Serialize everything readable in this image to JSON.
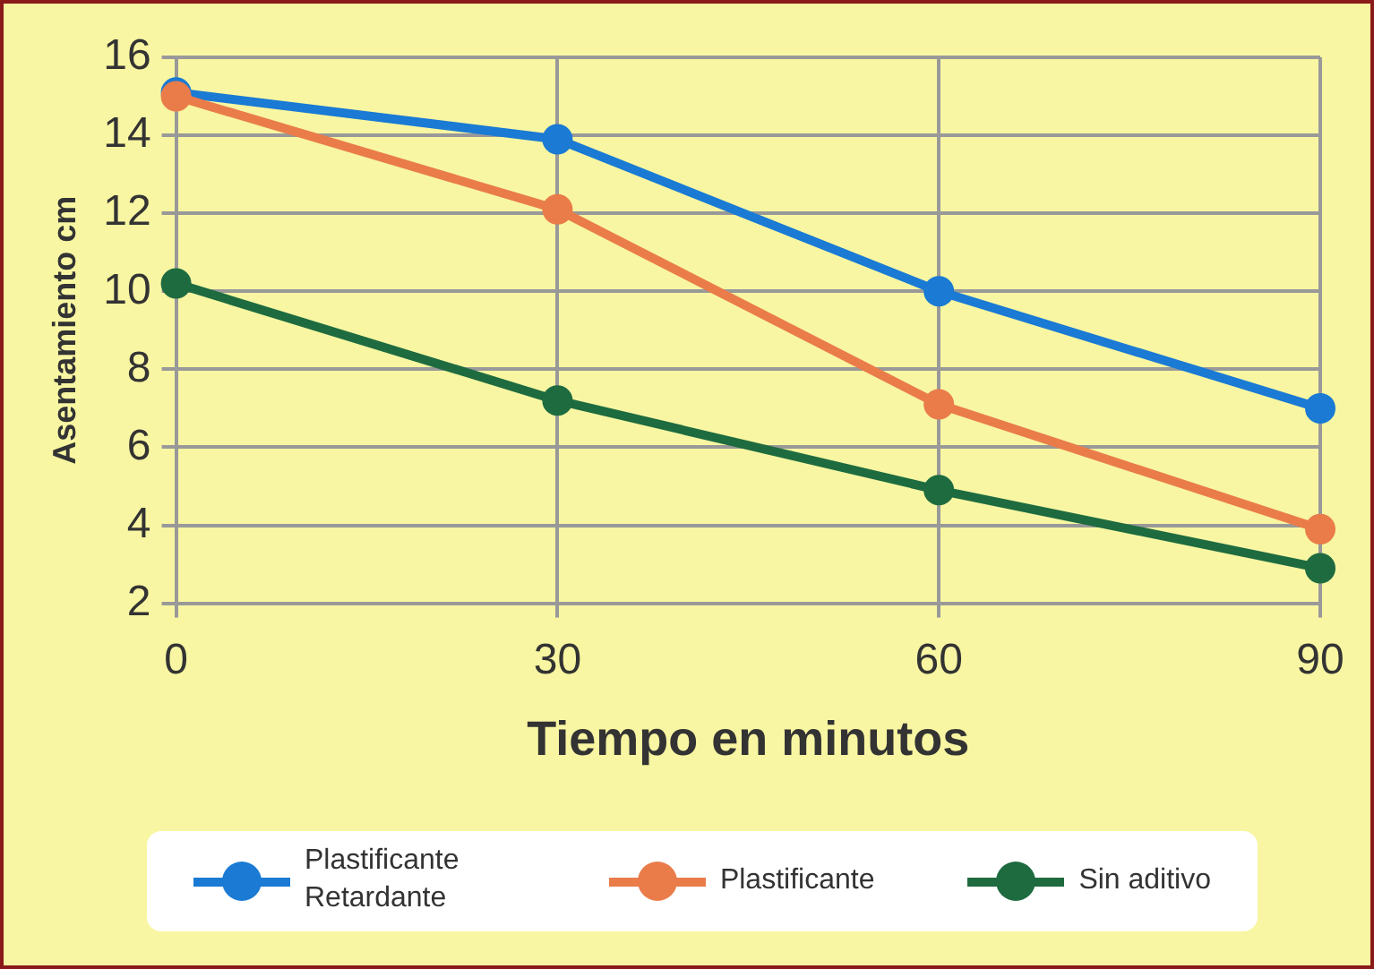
{
  "chart_data": {
    "type": "line",
    "xlabel": "Tiempo en minutos",
    "ylabel": "Asentamiento cm",
    "x": [
      0,
      30,
      60,
      90
    ],
    "xlim": [
      0,
      90
    ],
    "xticks": [
      0,
      30,
      60,
      90
    ],
    "ylim": [
      2,
      16
    ],
    "yticks": [
      2,
      4,
      6,
      8,
      10,
      12,
      14,
      16
    ],
    "series": [
      {
        "name": "Plastificante Retardante",
        "color": "#1a7ad4",
        "values": [
          15.1,
          13.9,
          10,
          7
        ]
      },
      {
        "name": "Plastificante",
        "color": "#ea7c4a",
        "values": [
          15,
          12.1,
          7.1,
          3.9
        ]
      },
      {
        "name": "Sin aditivo",
        "color": "#1e6b40",
        "values": [
          10.2,
          7.2,
          4.9,
          2.9
        ]
      }
    ],
    "grid": true,
    "legend": "bottom",
    "marker": "circle",
    "line_style": "solid"
  }
}
